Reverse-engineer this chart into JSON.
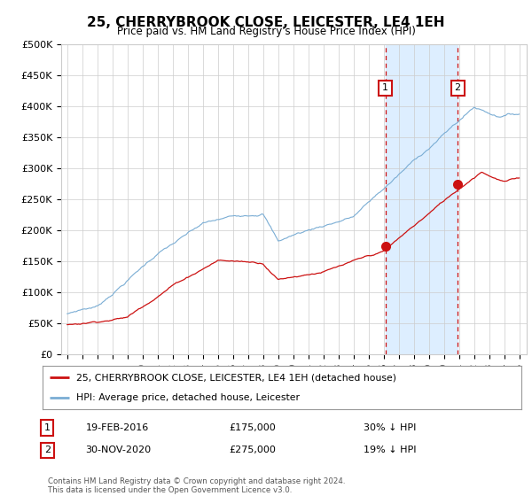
{
  "title": "25, CHERRYBROOK CLOSE, LEICESTER, LE4 1EH",
  "subtitle": "Price paid vs. HM Land Registry's House Price Index (HPI)",
  "ylabel_ticks": [
    "£0",
    "£50K",
    "£100K",
    "£150K",
    "£200K",
    "£250K",
    "£300K",
    "£350K",
    "£400K",
    "£450K",
    "£500K"
  ],
  "ytick_values": [
    0,
    50000,
    100000,
    150000,
    200000,
    250000,
    300000,
    350000,
    400000,
    450000,
    500000
  ],
  "hpi_color": "#7aadd4",
  "price_color": "#cc1111",
  "marker1_date": 2016.12,
  "marker1_price": 175000,
  "marker2_date": 2020.92,
  "marker2_price": 275000,
  "shade_color": "#ddeeff",
  "legend_line1": "25, CHERRYBROOK CLOSE, LEICESTER, LE4 1EH (detached house)",
  "legend_line2": "HPI: Average price, detached house, Leicester",
  "annotation1_date": "19-FEB-2016",
  "annotation1_price": "£175,000",
  "annotation1_hpi": "30% ↓ HPI",
  "annotation2_date": "30-NOV-2020",
  "annotation2_price": "£275,000",
  "annotation2_hpi": "19% ↓ HPI",
  "footer": "Contains HM Land Registry data © Crown copyright and database right 2024.\nThis data is licensed under the Open Government Licence v3.0.",
  "background_color": "#ffffff",
  "plot_bg_color": "#ffffff",
  "grid_color": "#cccccc"
}
